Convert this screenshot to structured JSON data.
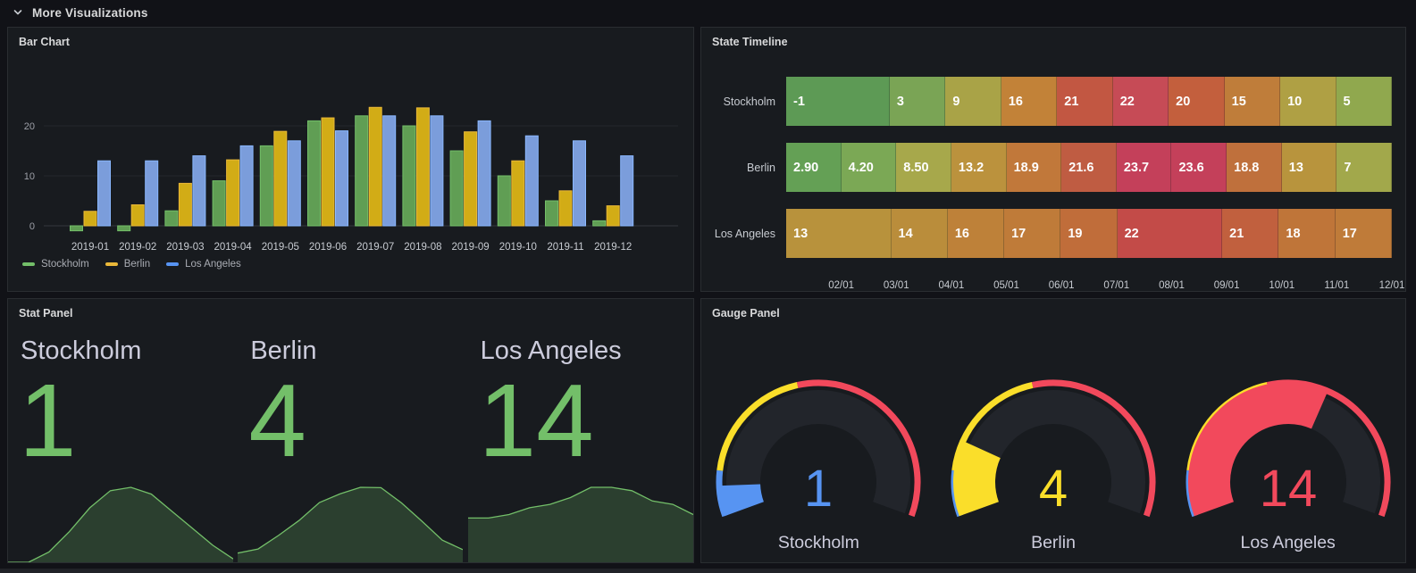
{
  "colors": {
    "page_bg": "#111217",
    "panel_bg": "#181B1F",
    "green": "#73BF69",
    "green_fill": "#609E54",
    "yellow": "#EAB839",
    "yellow_fill": "#D2AC16",
    "blue": "#8AB8FF",
    "blue_fill": "#7B9DDB",
    "gauge_blue": "#5794F2",
    "gauge_yellow": "#FADE2A",
    "gauge_red": "#F2495C",
    "stat_green": "#73BF69"
  },
  "header": {
    "title": "More Visualizations"
  },
  "bar_chart": {
    "title": "Bar Chart",
    "y_ticks": [
      0,
      10,
      20
    ],
    "categories": [
      "2019-01",
      "2019-02",
      "2019-03",
      "2019-04",
      "2019-05",
      "2019-06",
      "2019-07",
      "2019-08",
      "2019-09",
      "2019-10",
      "2019-11",
      "2019-12"
    ],
    "series": [
      {
        "name": "Stockholm",
        "fill": "#609E54",
        "stroke": "#73BF69",
        "legend": "#73BF69",
        "values": [
          -1,
          -1,
          3,
          9,
          16,
          21,
          22,
          20,
          15,
          10,
          5,
          1
        ]
      },
      {
        "name": "Berlin",
        "fill": "#D2AC16",
        "stroke": "#EAB839",
        "legend": "#EAB839",
        "values": [
          2.9,
          4.2,
          8.5,
          13.2,
          18.9,
          21.6,
          23.7,
          23.6,
          18.8,
          13,
          7,
          4
        ]
      },
      {
        "name": "Los Angeles",
        "fill": "#7B9DDB",
        "stroke": "#8AB8FF",
        "legend": "#5794F2",
        "values": [
          13,
          13,
          14,
          16,
          17,
          19,
          22,
          22,
          21,
          18,
          17,
          14
        ]
      }
    ]
  },
  "state_timeline": {
    "title": "State Timeline",
    "x_ticks": [
      "02/01",
      "03/01",
      "04/01",
      "05/01",
      "06/01",
      "07/01",
      "08/01",
      "09/01",
      "10/01",
      "11/01",
      "12/01"
    ],
    "rows": [
      {
        "label": "Stockholm",
        "cells": [
          {
            "value": "-1",
            "span": 2,
            "color": "#5D9A55"
          },
          {
            "value": "3",
            "span": 1,
            "color": "#7AA455"
          },
          {
            "value": "9",
            "span": 1,
            "color": "#A9A347"
          },
          {
            "value": "16",
            "span": 1,
            "color": "#C28238"
          },
          {
            "value": "21",
            "span": 1,
            "color": "#C25742"
          },
          {
            "value": "22",
            "span": 1,
            "color": "#C64B56"
          },
          {
            "value": "20",
            "span": 1,
            "color": "#C35F3D"
          },
          {
            "value": "15",
            "span": 1,
            "color": "#BF7D3A"
          },
          {
            "value": "10",
            "span": 1,
            "color": "#AFA044"
          },
          {
            "value": "5",
            "span": 1,
            "color": "#90A84E"
          }
        ]
      },
      {
        "label": "Berlin",
        "cells": [
          {
            "value": "2.90",
            "span": 1,
            "color": "#64A055"
          },
          {
            "value": "4.20",
            "span": 1,
            "color": "#7BA855"
          },
          {
            "value": "8.50",
            "span": 1,
            "color": "#A7A84B"
          },
          {
            "value": "13.2",
            "span": 1,
            "color": "#BB923D"
          },
          {
            "value": "18.9",
            "span": 1,
            "color": "#C1783A"
          },
          {
            "value": "21.6",
            "span": 1,
            "color": "#BF5C42"
          },
          {
            "value": "23.7",
            "span": 1,
            "color": "#C4405A"
          },
          {
            "value": "23.6",
            "span": 1,
            "color": "#C4405A"
          },
          {
            "value": "18.8",
            "span": 1,
            "color": "#BF703C"
          },
          {
            "value": "13",
            "span": 1,
            "color": "#B8943D"
          },
          {
            "value": "7",
            "span": 1,
            "color": "#A2A84B"
          }
        ]
      },
      {
        "label": "Los Angeles",
        "cells": [
          {
            "value": "13",
            "span": 2,
            "color": "#B8923C"
          },
          {
            "value": "14",
            "span": 1,
            "color": "#BA8D3B"
          },
          {
            "value": "16",
            "span": 1,
            "color": "#BE8139"
          },
          {
            "value": "17",
            "span": 1,
            "color": "#BF7B39"
          },
          {
            "value": "19",
            "span": 1,
            "color": "#C06D3A"
          },
          {
            "value": "22",
            "span": 2,
            "color": "#C34B48"
          },
          {
            "value": "21",
            "span": 1,
            "color": "#C1603E"
          },
          {
            "value": "18",
            "span": 1,
            "color": "#BF7539"
          },
          {
            "value": "17",
            "span": 1,
            "color": "#BF7B39"
          }
        ]
      }
    ]
  },
  "stat_panel": {
    "title": "Stat Panel",
    "stats": [
      {
        "label": "Stockholm",
        "value": "1",
        "spark": [
          -1,
          -1,
          3,
          9,
          16,
          21,
          22,
          20,
          15,
          10,
          5,
          1
        ]
      },
      {
        "label": "Berlin",
        "value": "4",
        "spark": [
          2.9,
          4.2,
          8.5,
          13.2,
          18.9,
          21.6,
          23.7,
          23.6,
          18.8,
          13,
          7,
          4
        ]
      },
      {
        "label": "Los Angeles",
        "value": "14",
        "spark": [
          13,
          13,
          14,
          16,
          17,
          19,
          22,
          22,
          21,
          18,
          17,
          14
        ]
      }
    ]
  },
  "gauge_panel": {
    "title": "Gauge Panel",
    "ring_thresholds": [
      {
        "to": 0.121,
        "color": "#5794F2"
      },
      {
        "to": 0.445,
        "color": "#FADE2A"
      },
      {
        "to": 1,
        "color": "#F2495C"
      }
    ],
    "gauges": [
      {
        "label": "Stockholm",
        "value": "1",
        "fraction": 0.081,
        "color": "#5794F2"
      },
      {
        "label": "Berlin",
        "value": "4",
        "fraction": 0.202,
        "color": "#FADE2A"
      },
      {
        "label": "Los Angeles",
        "value": "14",
        "fraction": 0.607,
        "color": "#F2495C"
      }
    ]
  },
  "chart_data": [
    {
      "type": "bar",
      "title": "Bar Chart",
      "categories": [
        "2019-01",
        "2019-02",
        "2019-03",
        "2019-04",
        "2019-05",
        "2019-06",
        "2019-07",
        "2019-08",
        "2019-09",
        "2019-10",
        "2019-11",
        "2019-12"
      ],
      "series": [
        {
          "name": "Stockholm",
          "values": [
            -1,
            -1,
            3,
            9,
            16,
            21,
            22,
            20,
            15,
            10,
            5,
            1
          ]
        },
        {
          "name": "Berlin",
          "values": [
            2.9,
            4.2,
            8.5,
            13.2,
            18.9,
            21.6,
            23.7,
            23.6,
            18.8,
            13,
            7,
            4
          ]
        },
        {
          "name": "Los Angeles",
          "values": [
            13,
            13,
            14,
            16,
            17,
            19,
            22,
            22,
            21,
            18,
            17,
            14
          ]
        }
      ],
      "ylim": [
        -2,
        25
      ],
      "y_ticks": [
        0,
        10,
        20
      ],
      "legend_position": "bottom-left",
      "grid": true
    },
    {
      "type": "heatmap",
      "title": "State Timeline",
      "rows": [
        "Stockholm",
        "Berlin",
        "Los Angeles"
      ],
      "x_ticks": [
        "02/01",
        "03/01",
        "04/01",
        "05/01",
        "06/01",
        "07/01",
        "08/01",
        "09/01",
        "10/01",
        "11/01",
        "12/01"
      ],
      "values": {
        "Stockholm": [
          -1,
          -1,
          3,
          9,
          16,
          21,
          22,
          20,
          15,
          10,
          5
        ],
        "Berlin": [
          2.9,
          4.2,
          8.5,
          13.2,
          18.9,
          21.6,
          23.7,
          23.6,
          18.8,
          13,
          7
        ],
        "Los Angeles": [
          13,
          13,
          14,
          16,
          17,
          19,
          22,
          22,
          21,
          18,
          17
        ]
      }
    },
    {
      "type": "area",
      "title": "Stat Panel",
      "stats": [
        {
          "name": "Stockholm",
          "value": 1
        },
        {
          "name": "Berlin",
          "value": 4
        },
        {
          "name": "Los Angeles",
          "value": 14
        }
      ]
    },
    {
      "type": "pie",
      "title": "Gauge Panel",
      "gauges": [
        {
          "name": "Stockholm",
          "value": 1
        },
        {
          "name": "Berlin",
          "value": 4
        },
        {
          "name": "Los Angeles",
          "value": 14
        }
      ]
    }
  ]
}
